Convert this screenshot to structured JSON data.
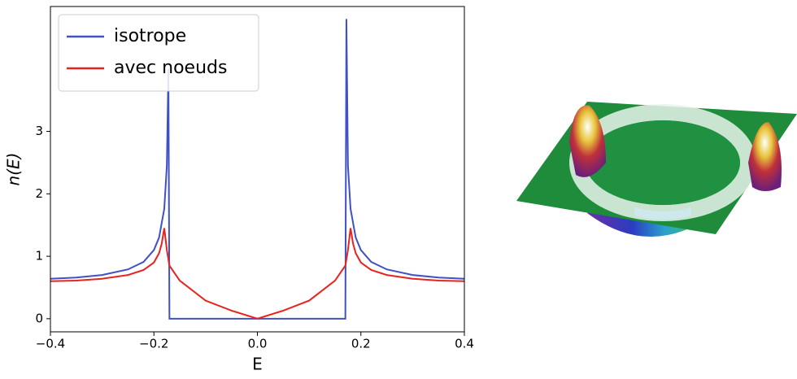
{
  "chart_data": {
    "type": "line",
    "xlabel": "E",
    "ylabel": "n(E)",
    "xlim": [
      -0.4,
      0.4
    ],
    "ylim": [
      -0.21,
      5.0
    ],
    "xticks": [
      {
        "value": -0.4,
        "label": "−0.4"
      },
      {
        "value": -0.2,
        "label": "−0.2"
      },
      {
        "value": 0,
        "label": "0.0"
      },
      0.2,
      0.4
    ],
    "yticks": [
      0,
      1,
      2,
      3
    ],
    "legend": "upper left",
    "series": [
      {
        "name": "isotrope",
        "color": "#3f51c4",
        "x": [
          -0.4,
          -0.35,
          -0.3,
          -0.25,
          -0.22,
          -0.2,
          -0.19,
          -0.18,
          -0.175,
          -0.172,
          -0.17,
          0.17,
          0.172,
          0.175,
          0.18,
          0.19,
          0.2,
          0.22,
          0.25,
          0.3,
          0.35,
          0.4
        ],
        "values": [
          0.64,
          0.66,
          0.7,
          0.79,
          0.91,
          1.1,
          1.3,
          1.76,
          2.45,
          4.0,
          0,
          0,
          4.8,
          2.45,
          1.76,
          1.3,
          1.1,
          0.91,
          0.79,
          0.7,
          0.66,
          0.64
        ]
      },
      {
        "name": "avec noeuds",
        "color": "#e8231f",
        "x": [
          -0.4,
          -0.35,
          -0.3,
          -0.25,
          -0.22,
          -0.2,
          -0.19,
          -0.185,
          -0.18,
          -0.175,
          -0.17,
          -0.15,
          -0.1,
          -0.05,
          0,
          0.05,
          0.1,
          0.15,
          0.17,
          0.175,
          0.18,
          0.185,
          0.19,
          0.2,
          0.22,
          0.25,
          0.3,
          0.35,
          0.4
        ],
        "values": [
          0.6,
          0.61,
          0.64,
          0.7,
          0.78,
          0.9,
          1.05,
          1.2,
          1.45,
          1.1,
          0.85,
          0.61,
          0.29,
          0.13,
          0,
          0.13,
          0.29,
          0.61,
          0.85,
          1.1,
          1.45,
          1.2,
          1.05,
          0.9,
          0.78,
          0.7,
          0.64,
          0.61,
          0.6
        ]
      }
    ]
  }
}
